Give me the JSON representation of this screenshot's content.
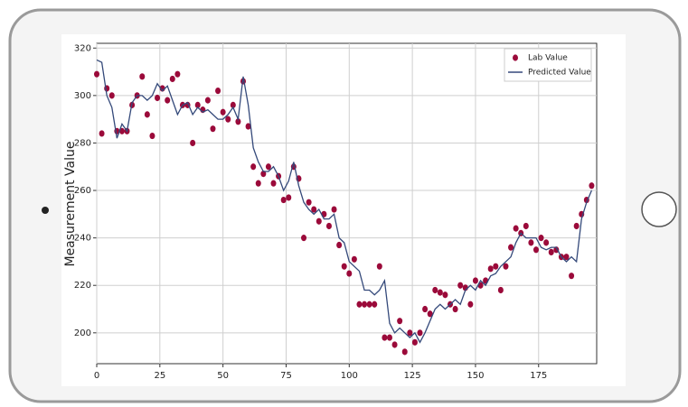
{
  "chart_data": {
    "type": "scatter",
    "y_label": "Measurement Value",
    "xlim": [
      0,
      198
    ],
    "ylim": [
      187,
      322
    ],
    "xticks": [
      0,
      25,
      50,
      75,
      100,
      125,
      150,
      175
    ],
    "yticks": [
      200,
      220,
      240,
      260,
      280,
      300,
      320
    ],
    "grid": true,
    "legend": "upper right",
    "x": [
      0,
      2,
      4,
      6,
      8,
      10,
      12,
      14,
      16,
      18,
      20,
      22,
      24,
      26,
      28,
      30,
      32,
      34,
      36,
      38,
      40,
      42,
      44,
      46,
      48,
      50,
      52,
      54,
      56,
      58,
      60,
      62,
      64,
      66,
      68,
      70,
      72,
      74,
      76,
      78,
      80,
      82,
      84,
      86,
      88,
      90,
      92,
      94,
      96,
      98,
      100,
      102,
      104,
      106,
      108,
      110,
      112,
      114,
      116,
      118,
      120,
      122,
      124,
      126,
      128,
      130,
      132,
      134,
      136,
      138,
      140,
      142,
      144,
      146,
      148,
      150,
      152,
      154,
      156,
      158,
      160,
      162,
      164,
      166,
      168,
      170,
      172,
      174,
      176,
      178,
      180,
      182,
      184,
      186,
      188,
      190,
      192,
      194,
      196
    ],
    "series": [
      {
        "name": "Lab Value",
        "type": "scatter",
        "color": "#9b0a3a",
        "values": [
          309,
          284,
          303,
          300,
          285,
          285,
          285,
          296,
          300,
          308,
          292,
          283,
          299,
          303,
          298,
          307,
          309,
          296,
          296,
          280,
          296,
          294,
          298,
          286,
          302,
          293,
          290,
          296,
          289,
          306,
          287,
          270,
          263,
          267,
          270,
          263,
          266,
          256,
          257,
          270,
          265,
          240,
          255,
          252,
          247,
          250,
          245,
          252,
          237,
          228,
          225,
          231,
          212,
          212,
          212,
          212,
          228,
          198,
          198,
          195,
          205,
          192,
          200,
          196,
          200,
          210,
          208,
          218,
          217,
          216,
          212,
          210,
          220,
          219,
          212,
          222,
          220,
          222,
          227,
          228,
          218,
          228,
          236,
          244,
          242,
          245,
          238,
          235,
          240,
          238,
          234,
          235,
          232,
          232,
          224,
          245,
          250,
          256,
          262
        ]
      },
      {
        "name": "Predicted Value",
        "type": "line",
        "color": "#34497a",
        "values": [
          315,
          314,
          300,
          295,
          282,
          288,
          285,
          297,
          300,
          300,
          298,
          300,
          305,
          302,
          304,
          298,
          292,
          296,
          297,
          292,
          295,
          293,
          294,
          292,
          290,
          290,
          292,
          295,
          290,
          308,
          296,
          278,
          272,
          268,
          268,
          270,
          266,
          260,
          264,
          272,
          262,
          255,
          252,
          250,
          252,
          248,
          248,
          250,
          240,
          238,
          230,
          228,
          226,
          218,
          218,
          216,
          218,
          222,
          204,
          200,
          202,
          200,
          198,
          200,
          196,
          200,
          205,
          210,
          212,
          210,
          212,
          214,
          212,
          218,
          220,
          218,
          222,
          220,
          224,
          225,
          228,
          230,
          232,
          238,
          242,
          240,
          240,
          240,
          236,
          235,
          236,
          236,
          232,
          230,
          232,
          230,
          248,
          255,
          260
        ]
      }
    ]
  }
}
